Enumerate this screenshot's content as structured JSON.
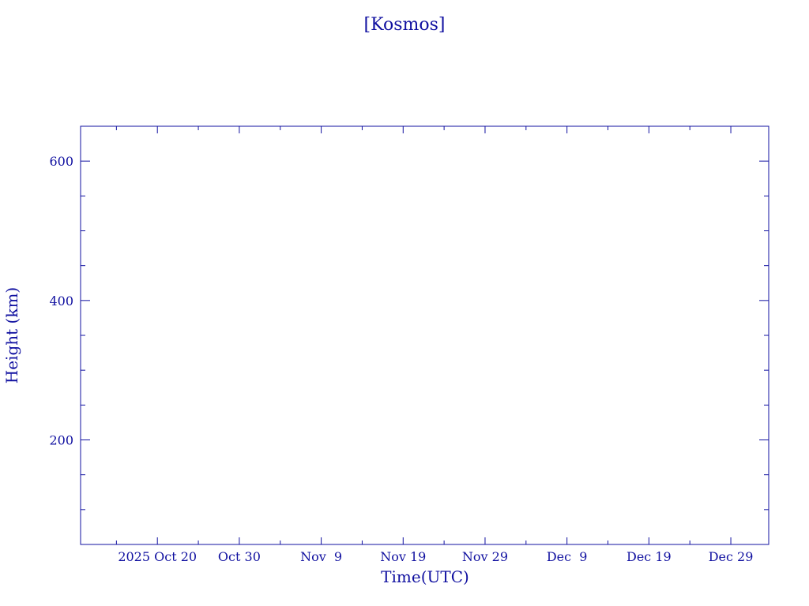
{
  "chart_data": {
    "type": "line",
    "title": "[Kosmos]",
    "xlabel": "Time(UTC)",
    "ylabel": "Height (km)",
    "xlim": [
      "2025-10-10T15:00:00Z",
      "2026-01-02T15:00:00Z"
    ],
    "ylim": [
      50,
      650
    ],
    "x_major_ticks": [
      "2025-10-20",
      "2025-10-30",
      "2025-11-09",
      "2025-11-19",
      "2025-11-29",
      "2025-12-09",
      "2025-12-19",
      "2025-12-29"
    ],
    "x_tick_labels": [
      "2025 Oct 20",
      "Oct 30",
      "Nov  9",
      "Nov 19",
      "Nov 29",
      "Dec  9",
      "Dec 19",
      "Dec 29"
    ],
    "x_minor_tick_days": 5,
    "y_major_ticks": [
      200,
      400,
      600
    ],
    "y_tick_labels": [
      "200",
      "400",
      "600"
    ],
    "y_minor_step": 50,
    "grid": false,
    "series": [],
    "color": "#1010a0"
  }
}
